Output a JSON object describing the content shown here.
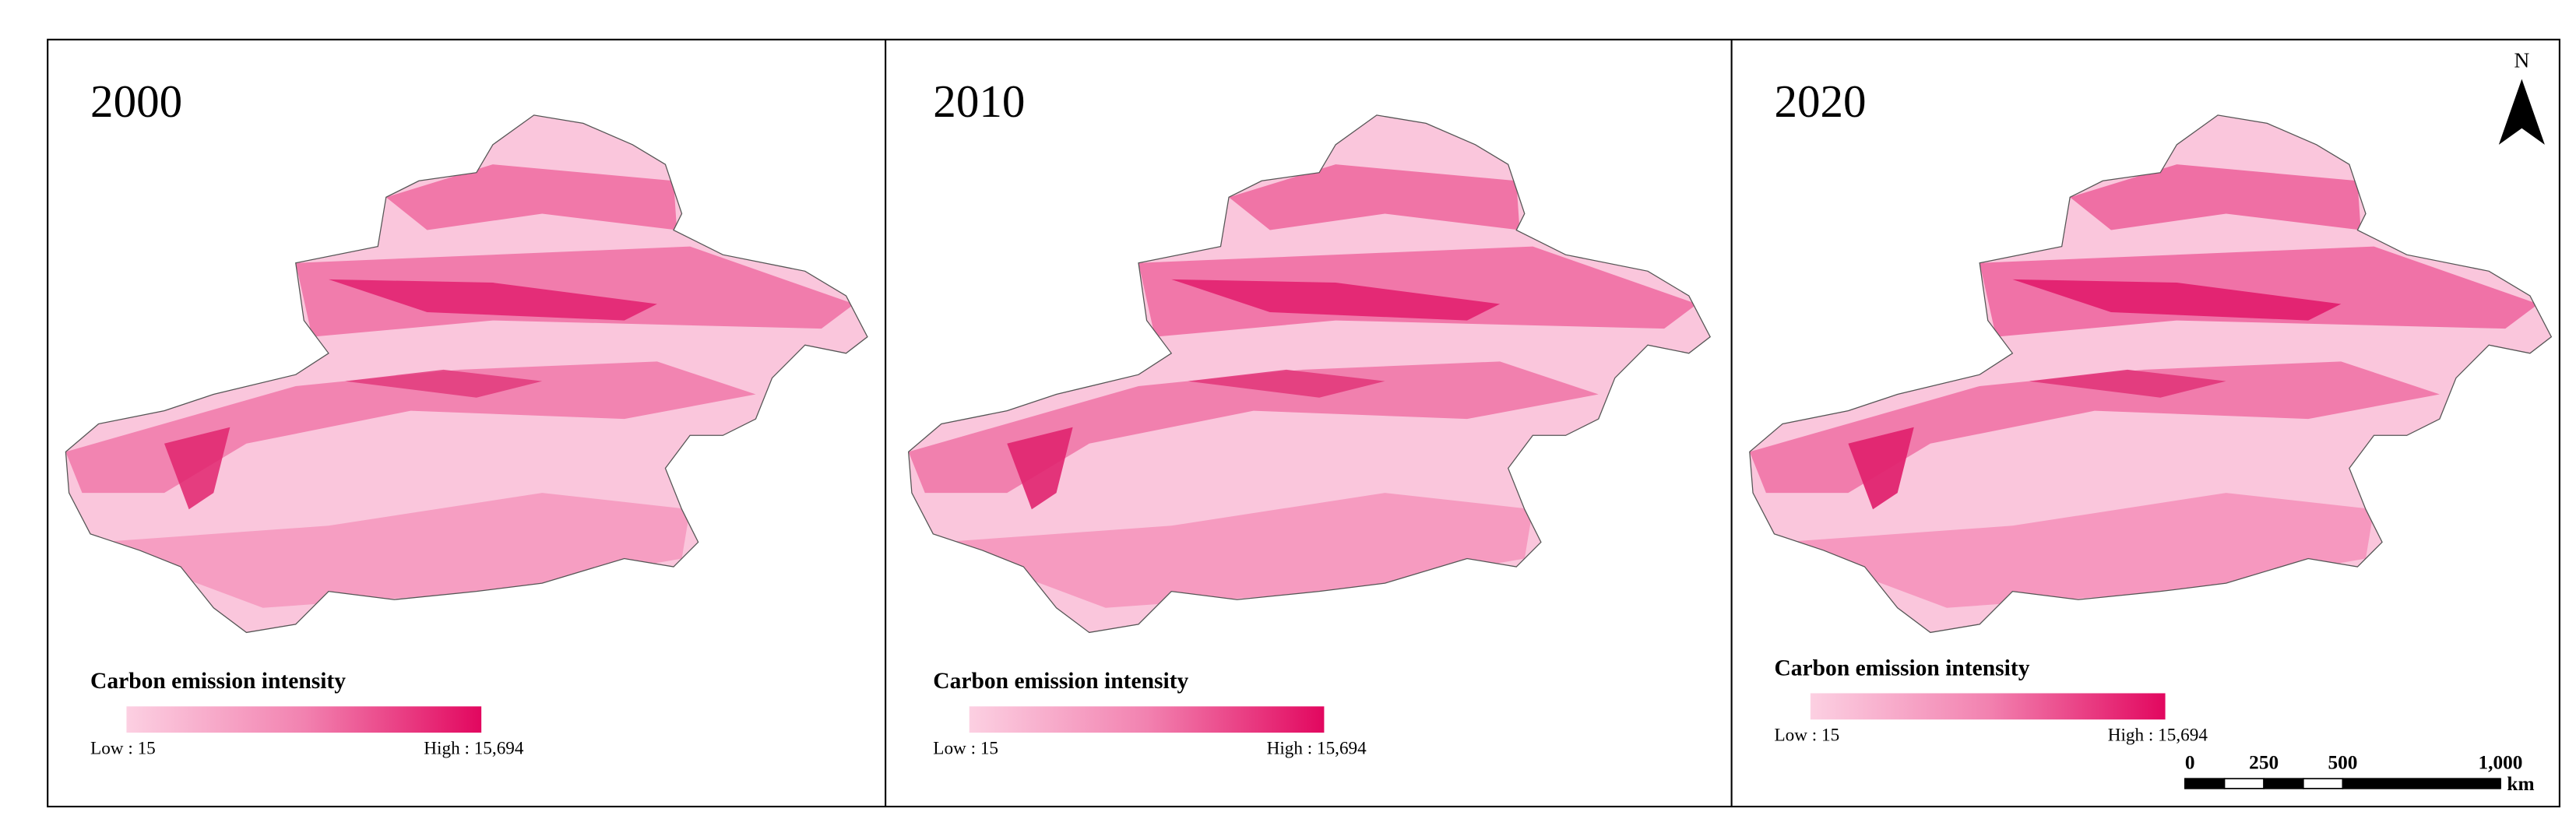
{
  "panels": [
    {
      "year": "2000",
      "legend_title": "Carbon emission intensity",
      "low": "Low : 15",
      "high": "High : 15,694"
    },
    {
      "year": "2010",
      "legend_title": "Carbon emission intensity",
      "low": "Low : 15",
      "high": "High : 15,694"
    },
    {
      "year": "2020",
      "legend_title": "Carbon emission intensity",
      "low": "Low : 15",
      "high": "High : 15,694"
    }
  ],
  "north": "N",
  "scale_bar": {
    "ticks": [
      0,
      250,
      500,
      {
        "value": 1000,
        "label": "1,000"
      }
    ],
    "unit": "km"
  }
}
